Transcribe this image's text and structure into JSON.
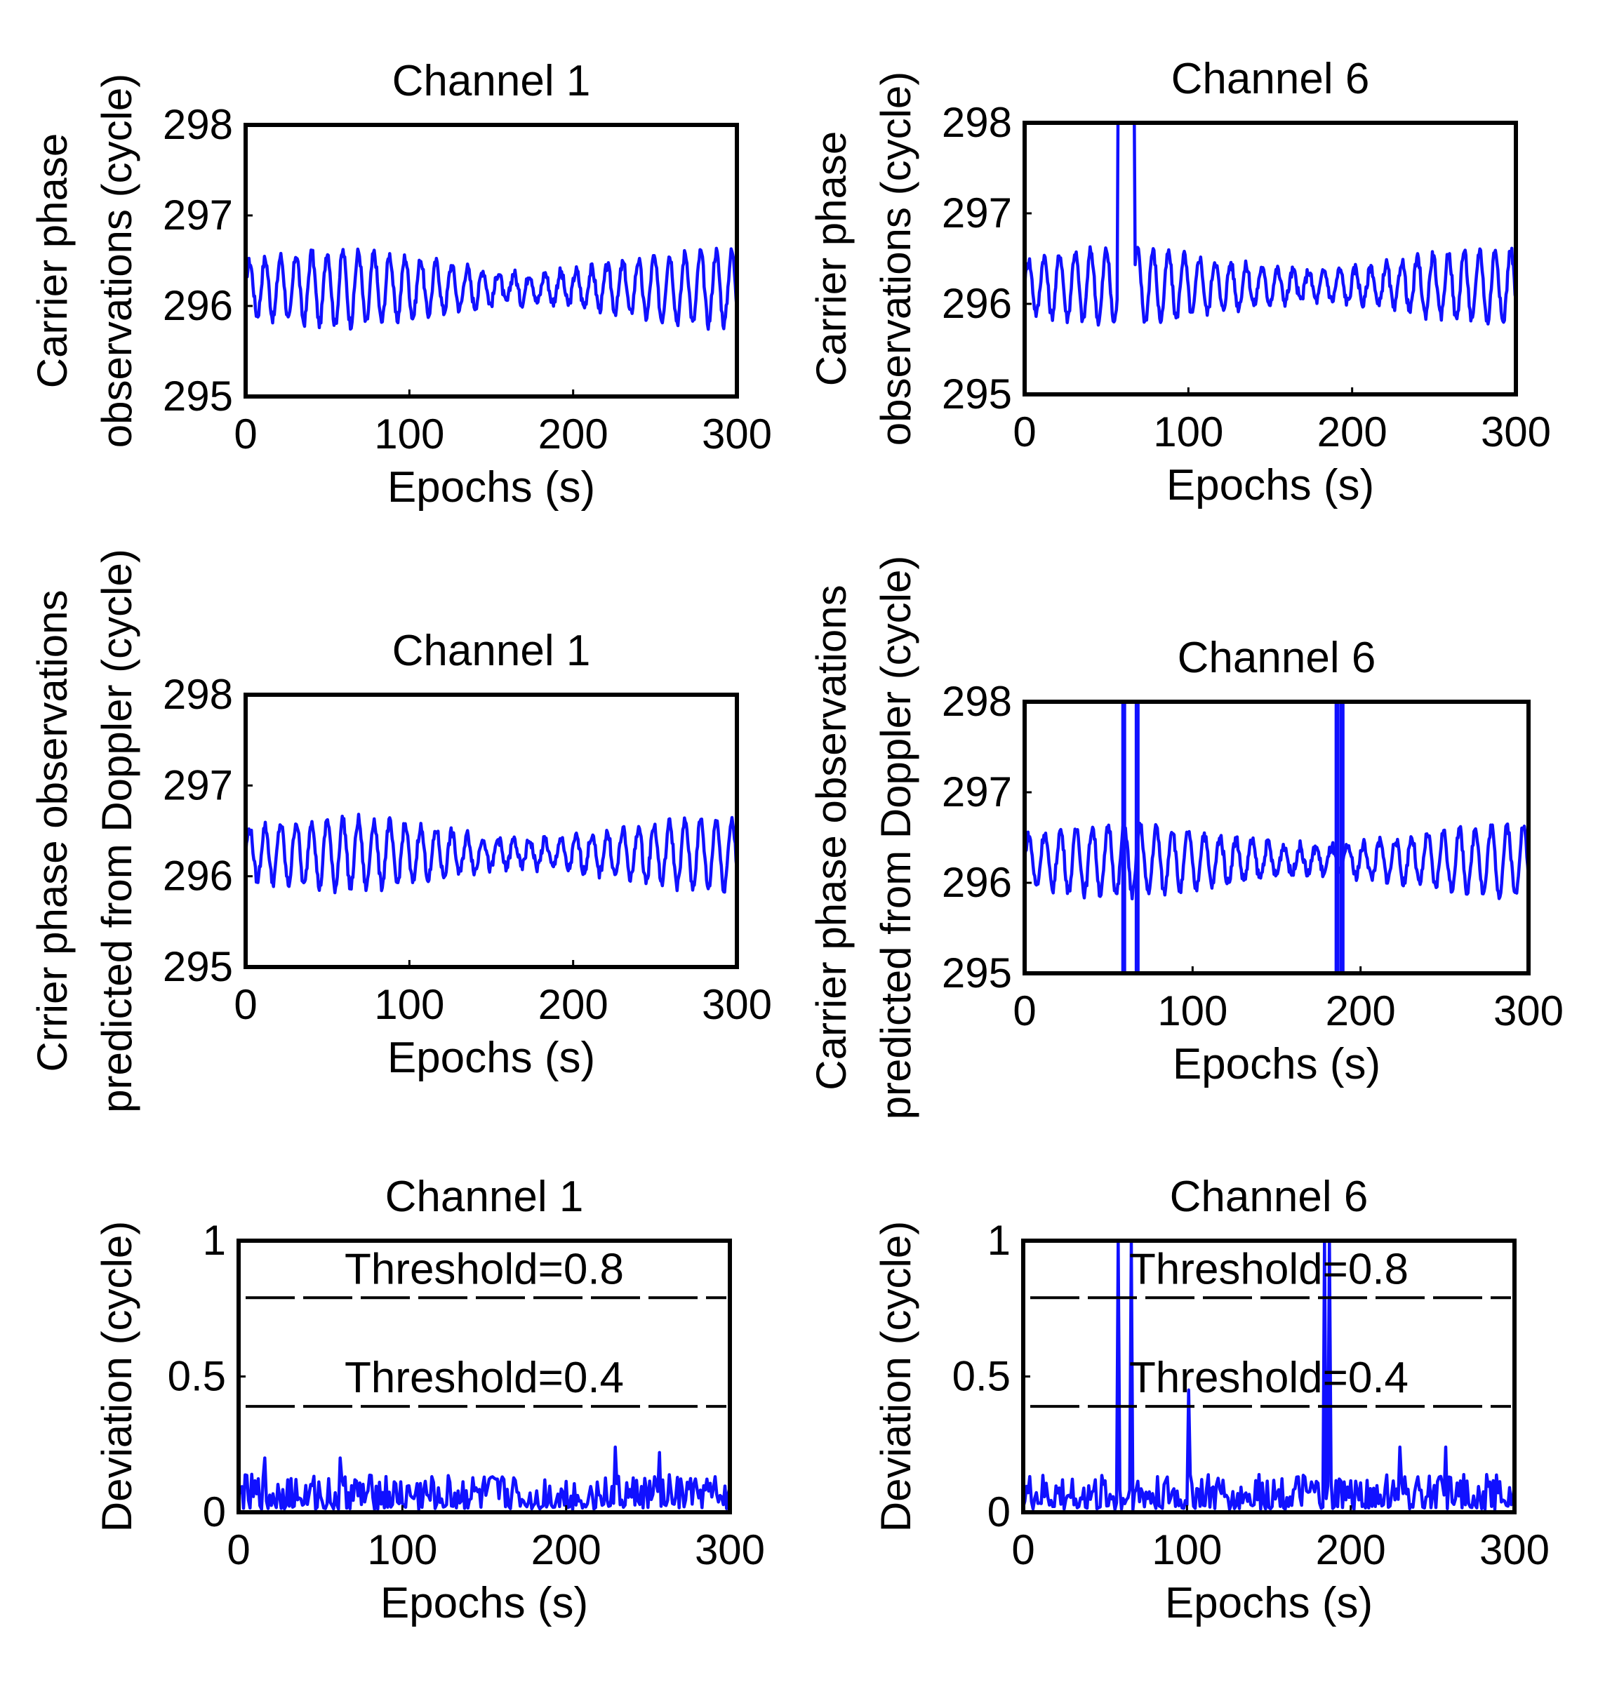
{
  "chart_data": [
    {
      "type": "line",
      "id": "p1",
      "title": "Channel 1",
      "xlabel": "Epochs (s)",
      "ylabel": [
        "Carrier phase",
        "observations (cycle)"
      ],
      "xlim": [
        0,
        300
      ],
      "ylim": [
        295,
        298
      ],
      "xticks": [
        0,
        100,
        200,
        300
      ],
      "yticks": [
        295,
        296,
        297,
        298
      ],
      "series": [
        {
          "name": "Channel 1",
          "base": 296.2,
          "amplitude": 0.35,
          "period": 9.5,
          "jumps": []
        }
      ]
    },
    {
      "type": "line",
      "id": "p2",
      "title": "Channel 6",
      "xlabel": "Epochs (s)",
      "ylabel": [
        "Carrier phase",
        "observations (cycle)"
      ],
      "xlim": [
        0,
        300
      ],
      "ylim": [
        295,
        298
      ],
      "xticks": [
        0,
        100,
        200,
        300
      ],
      "yticks": [
        295,
        296,
        297,
        298
      ],
      "series": [
        {
          "name": "Channel 6",
          "base": 296.2,
          "amplitude": 0.35,
          "period": 9.5,
          "jumps": [
            {
              "from": 57,
              "to": 67,
              "value": 298.2
            }
          ]
        }
      ]
    },
    {
      "type": "line",
      "id": "p3",
      "title": "Channel 1",
      "xlabel": "Epochs (s)",
      "ylabel": [
        "Crrier phase observations",
        "predicted from Doppler (cycle)"
      ],
      "xlim": [
        0,
        300
      ],
      "ylim": [
        295,
        298
      ],
      "xticks": [
        0,
        100,
        200,
        300
      ],
      "yticks": [
        295,
        296,
        297,
        298
      ],
      "series": [
        {
          "name": "Channel 1",
          "base": 296.25,
          "amplitude": 0.33,
          "period": 9.5,
          "jumps": []
        }
      ]
    },
    {
      "type": "line",
      "id": "p4",
      "title": "Channel 6",
      "xlabel": "Epochs (s)",
      "ylabel": [
        "Carrier phase observations",
        "predicted from Doppler (cycle)"
      ],
      "xlim": [
        0,
        300
      ],
      "ylim": [
        295,
        298
      ],
      "xticks": [
        0,
        100,
        200,
        300
      ],
      "yticks": [
        295,
        296,
        297,
        298
      ],
      "series": [
        {
          "name": "Channel 6",
          "base": 296.25,
          "amplitude": 0.33,
          "period": 9.5,
          "spikes": [
            {
              "x": 59,
              "low": 295.0,
              "high": 298.0
            },
            {
              "x": 67,
              "low": 295.0,
              "high": 298.0
            },
            {
              "x": 186,
              "low": 295.0,
              "high": 298.0
            },
            {
              "x": 189,
              "low": 295.0,
              "high": 298.0
            }
          ]
        }
      ]
    },
    {
      "type": "line",
      "id": "p5",
      "title": "Channel 1",
      "xlabel": "Epochs (s)",
      "ylabel": [
        "Deviation (cycle)"
      ],
      "xlim": [
        0,
        300
      ],
      "ylim": [
        0,
        1
      ],
      "xticks": [
        0,
        100,
        200,
        300
      ],
      "yticks": [
        0,
        0.5,
        1
      ],
      "ytick_labels": [
        "0",
        "0.5",
        "1"
      ],
      "thresholds": [
        {
          "label": "Threshold=0.8",
          "value": 0.79
        },
        {
          "label": "Threshold=0.4",
          "value": 0.39
        }
      ],
      "series": [
        {
          "name": "Channel 1 deviation",
          "base": 0.06,
          "noise": 0.08,
          "peaks": [
            {
              "x": 16,
              "value": 0.2
            },
            {
              "x": 62,
              "value": 0.2
            },
            {
              "x": 230,
              "value": 0.24
            },
            {
              "x": 257,
              "value": 0.22
            }
          ]
        }
      ]
    },
    {
      "type": "line",
      "id": "p6",
      "title": "Channel 6",
      "xlabel": "Epochs (s)",
      "ylabel": [
        "Deviation (cycle)"
      ],
      "xlim": [
        0,
        300
      ],
      "ylim": [
        0,
        1
      ],
      "xticks": [
        0,
        100,
        200,
        300
      ],
      "yticks": [
        0,
        0.5,
        1
      ],
      "ytick_labels": [
        "0",
        "0.5",
        "1"
      ],
      "thresholds": [
        {
          "label": "Threshold=0.8",
          "value": 0.79
        },
        {
          "label": "Threshold=0.4",
          "value": 0.39
        }
      ],
      "series": [
        {
          "name": "Channel 6 deviation",
          "base": 0.06,
          "noise": 0.08,
          "peaks": [
            {
              "x": 58,
              "value": 1.0
            },
            {
              "x": 66,
              "value": 1.0
            },
            {
              "x": 101,
              "value": 0.45
            },
            {
              "x": 184,
              "value": 1.0
            },
            {
              "x": 187,
              "value": 1.0
            },
            {
              "x": 230,
              "value": 0.24
            },
            {
              "x": 258,
              "value": 0.24
            }
          ]
        }
      ]
    }
  ]
}
